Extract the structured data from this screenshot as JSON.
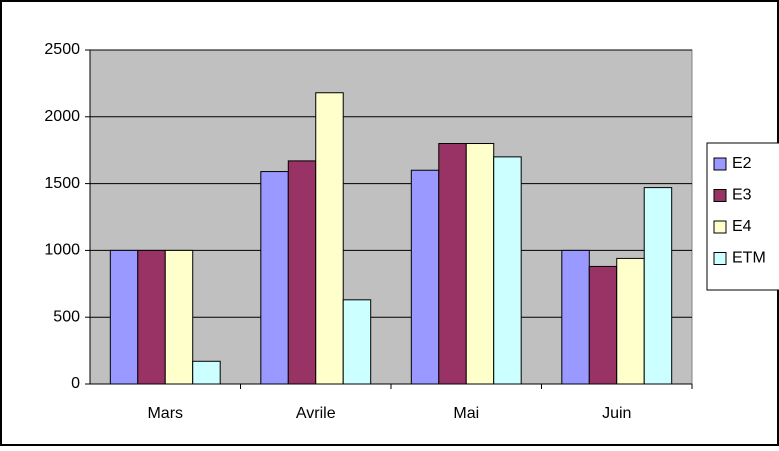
{
  "chart_data": {
    "type": "bar",
    "categories": [
      "Mars",
      "Avrile",
      "Mai",
      "Juin"
    ],
    "series": [
      {
        "name": "E2",
        "color": "#9999ff",
        "values": [
          1000,
          1590,
          1600,
          1000
        ]
      },
      {
        "name": "E3",
        "color": "#993366",
        "values": [
          1000,
          1670,
          1800,
          880
        ]
      },
      {
        "name": "E4",
        "color": "#ffffcc",
        "values": [
          1000,
          2180,
          1800,
          940
        ]
      },
      {
        "name": "ETM",
        "color": "#ccffff",
        "values": [
          170,
          630,
          1700,
          1470
        ]
      }
    ],
    "ylim": [
      0,
      2500
    ],
    "yticks": [
      0,
      500,
      1000,
      1500,
      2000,
      2500
    ],
    "grid": true,
    "legend": "right"
  }
}
